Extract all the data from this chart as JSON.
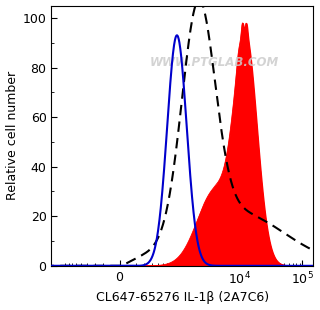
{
  "xlabel": "CL647-65276 IL-1β (2A7C6)",
  "ylabel": "Relative cell number",
  "watermark": "WWW.PTGLAB.COM",
  "ylim": [
    0,
    105
  ],
  "yticks": [
    0,
    20,
    40,
    60,
    80,
    100
  ],
  "blue_line_color": "#0000cc",
  "dashed_line_color": "#000000",
  "red_fill_color": "#ff0000"
}
